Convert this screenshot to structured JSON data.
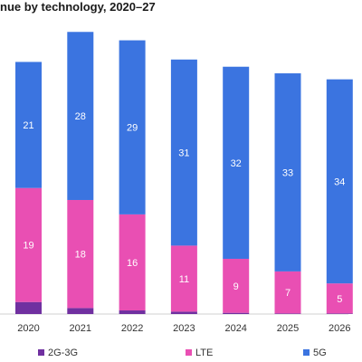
{
  "chart_data": {
    "type": "bar",
    "stacked": true,
    "title": "nue by technology, 2020–27",
    "categories": [
      "2020",
      "2021",
      "2022",
      "2023",
      "2024",
      "2025",
      "2026"
    ],
    "series": [
      {
        "name": "2G-3G",
        "color": "#7030a0",
        "values": [
          2.0,
          1.0,
          0.6,
          0.4,
          0.2,
          0.1,
          0.1
        ],
        "labels": [
          "",
          "",
          "",
          "",
          "",
          "",
          ""
        ]
      },
      {
        "name": "LTE",
        "color": "#e94fb3",
        "values": [
          19,
          18,
          16,
          11,
          9,
          7,
          5
        ],
        "labels": [
          "19",
          "18",
          "16",
          "11",
          "9",
          "7",
          "5"
        ]
      },
      {
        "name": "5G",
        "color": "#3b74e0",
        "values": [
          21,
          28,
          29,
          31,
          32,
          33,
          34
        ],
        "labels": [
          "21",
          "28",
          "29",
          "31",
          "32",
          "33",
          "34"
        ]
      }
    ],
    "ylim": [
      0,
      49
    ],
    "legend_position": "bottom",
    "grid": false
  }
}
